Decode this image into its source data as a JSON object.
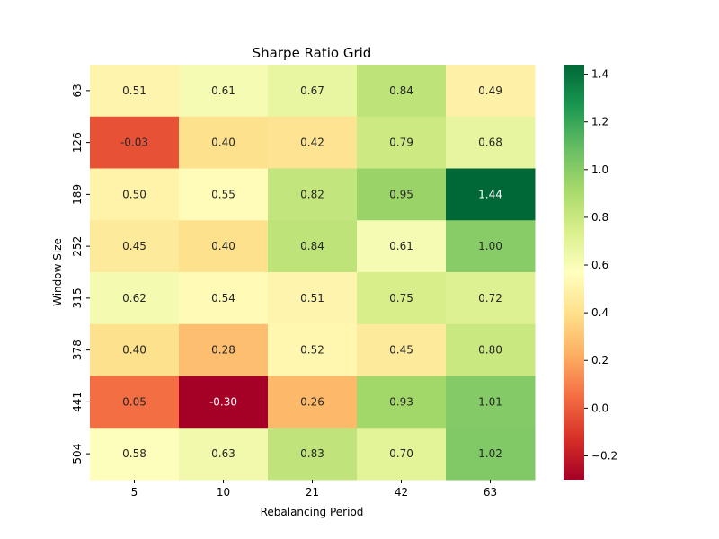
{
  "chart_data": {
    "type": "heatmap",
    "title": "Sharpe Ratio Grid",
    "xlabel": "Rebalancing Period",
    "ylabel": "Window Size",
    "x_categories": [
      "5",
      "10",
      "21",
      "42",
      "63"
    ],
    "y_categories": [
      "63",
      "126",
      "189",
      "252",
      "315",
      "378",
      "441",
      "504"
    ],
    "values": [
      [
        0.51,
        0.61,
        0.67,
        0.84,
        0.49
      ],
      [
        -0.03,
        0.4,
        0.42,
        0.79,
        0.68
      ],
      [
        0.5,
        0.55,
        0.82,
        0.95,
        1.44
      ],
      [
        0.45,
        0.4,
        0.84,
        0.61,
        1.0
      ],
      [
        0.62,
        0.54,
        0.51,
        0.75,
        0.72
      ],
      [
        0.4,
        0.28,
        0.52,
        0.45,
        0.8
      ],
      [
        0.05,
        -0.3,
        0.26,
        0.93,
        1.01
      ],
      [
        0.58,
        0.63,
        0.83,
        0.7,
        1.02
      ]
    ],
    "value_format": "0.00",
    "colormap": "RdYlGn",
    "colormap_stops": [
      "#a50026",
      "#d73027",
      "#f46d43",
      "#fdae61",
      "#fee08b",
      "#ffffbf",
      "#d9ef8b",
      "#a6d96a",
      "#66bd63",
      "#1a9850",
      "#006837"
    ],
    "vmin": -0.3,
    "vmax": 1.44,
    "colorbar_ticks": [
      -0.2,
      0.0,
      0.2,
      0.4,
      0.6,
      0.8,
      1.0,
      1.2,
      1.4
    ],
    "colorbar_tick_labels": [
      "−0.2",
      "0.0",
      "0.2",
      "0.4",
      "0.6",
      "0.8",
      "1.0",
      "1.2",
      "1.4"
    ],
    "grid": false,
    "legend": "colorbar-right"
  }
}
